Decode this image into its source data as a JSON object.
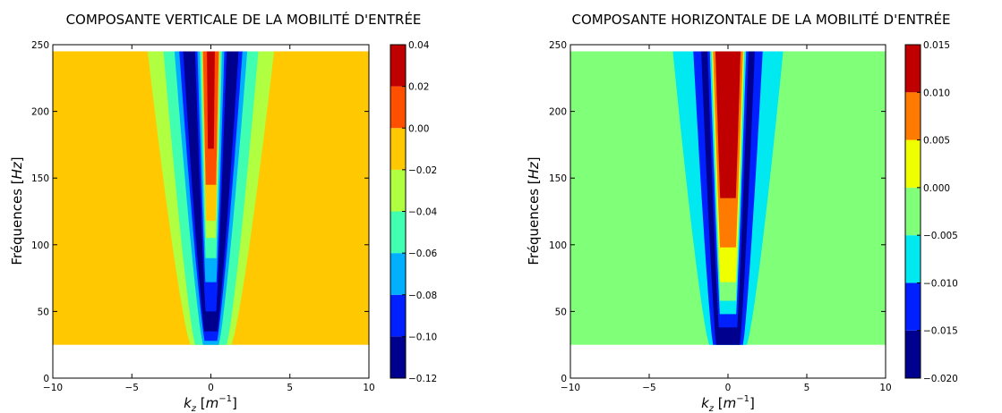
{
  "figure": {
    "background": "#ffffff",
    "colormap": [
      "#00008f",
      "#0020ff",
      "#00b0ff",
      "#40ffb0",
      "#b0ff40",
      "#ffc800",
      "#ff5000",
      "#c00000"
    ]
  },
  "chart_data": [
    {
      "type": "heatmap",
      "id": "vertical",
      "title": "COMPOSANTE VERTICALE DE LA MOBILITÉ D'ENTRÉE",
      "xlabel": "k_z [m^{-1}]",
      "ylabel": "Fréquences [Hz]",
      "xlim": [
        -10,
        10
      ],
      "ylim": [
        0,
        250
      ],
      "xticks": [
        -10,
        -5,
        0,
        5,
        10
      ],
      "yticks": [
        0,
        50,
        100,
        150,
        200,
        250
      ],
      "data_extent": {
        "x": [
          -10,
          10
        ],
        "y": [
          25,
          245
        ]
      },
      "background_level": "-0.02 to 0.00",
      "colorbar": {
        "levels": [
          -0.12,
          -0.1,
          -0.08,
          -0.06,
          -0.04,
          -0.02,
          0.0,
          0.02,
          0.04
        ],
        "tick_labels": [
          "−0.12",
          "−0.10",
          "−0.08",
          "−0.06",
          "−0.04",
          "−0.02",
          "0.00",
          "0.02",
          "0.04"
        ],
        "colors": [
          "#00008f",
          "#0020ff",
          "#00b0ff",
          "#40ffb0",
          "#b0ff40",
          "#ffc800",
          "#ff5000",
          "#c00000"
        ]
      },
      "contour_bands": [
        {
          "band": "-0.04 to -0.02",
          "color": "#b0ff40",
          "bottom_f": 25,
          "half_width_at_25": 1.3,
          "half_width_at_245": 4.0
        },
        {
          "band": "-0.06 to -0.04",
          "color": "#40ffb0",
          "bottom_f": 25,
          "half_width_at_25": 1.0,
          "half_width_at_245": 3.0
        },
        {
          "band": "-0.08 to -0.06",
          "color": "#00b0ff",
          "bottom_f": 25,
          "half_width_at_25": 0.5,
          "half_width_at_245": 2.3
        },
        {
          "band": "-0.10 to -0.08",
          "color": "#0020ff",
          "bottom_f": 28,
          "half_width_at_25": 0.35,
          "half_width_at_245": 2.0
        },
        {
          "band": "-0.12 to -0.10",
          "color": "#00008f",
          "bottom_f": 35,
          "half_width_at_25": 0.3,
          "half_width_at_245": 1.75
        },
        {
          "band": "-0.10 to -0.08",
          "color": "#0020ff",
          "bottom_f": 50,
          "half_width_at_25": 0.2,
          "half_width_at_245": 1.0
        },
        {
          "band": "-0.08 to -0.06",
          "color": "#00b0ff",
          "bottom_f": 72,
          "half_width_at_25": 0.15,
          "half_width_at_245": 0.85
        },
        {
          "band": "-0.06 to -0.04",
          "color": "#40ffb0",
          "bottom_f": 90,
          "half_width_at_25": 0.12,
          "half_width_at_245": 0.7
        },
        {
          "band": "-0.04 to -0.02",
          "color": "#b0ff40",
          "bottom_f": 105,
          "half_width_at_25": 0.1,
          "half_width_at_245": 0.58
        },
        {
          "band": "-0.02 to 0.00",
          "color": "#ffc800",
          "bottom_f": 118,
          "half_width_at_25": 0.08,
          "half_width_at_245": 0.55
        },
        {
          "band": "0.00 to 0.02",
          "color": "#ff5000",
          "bottom_f": 145,
          "half_width_at_25": 0.05,
          "half_width_at_245": 0.5
        },
        {
          "band": "0.02 to 0.04",
          "color": "#c00000",
          "bottom_f": 172,
          "half_width_at_25": 0.03,
          "half_width_at_245": 0.25
        }
      ]
    },
    {
      "type": "heatmap",
      "id": "horizontal",
      "title": "COMPOSANTE HORIZONTALE DE LA MOBILITÉ D'ENTRÉE",
      "xlabel": "k_z [m^{-1}]",
      "ylabel": "Fréquences [Hz]",
      "xlim": [
        -10,
        10
      ],
      "ylim": [
        0,
        250
      ],
      "xticks": [
        -10,
        -5,
        0,
        5,
        10
      ],
      "yticks": [
        0,
        50,
        100,
        150,
        200,
        250
      ],
      "data_extent": {
        "x": [
          -10,
          10
        ],
        "y": [
          25,
          245
        ]
      },
      "background_level": "-0.005 to 0.000",
      "colorbar": {
        "levels": [
          -0.02,
          -0.015,
          -0.01,
          -0.005,
          0.0,
          0.005,
          0.01,
          0.015
        ],
        "tick_labels": [
          "−0.020",
          "−0.015",
          "−0.010",
          "−0.005",
          "0.000",
          "0.005",
          "0.010",
          "0.015"
        ],
        "colors": [
          "#00008f",
          "#0020ff",
          "#00e8f0",
          "#80ff78",
          "#f0ff00",
          "#ff7a00",
          "#c00000"
        ]
      },
      "contour_bands": [
        {
          "band": "-0.010 to -0.005",
          "color": "#00e8f0",
          "bottom_f": 25,
          "half_width_at_25": 1.2,
          "half_width_at_245": 3.5
        },
        {
          "band": "-0.015 to -0.010",
          "color": "#0020ff",
          "bottom_f": 25,
          "half_width_at_25": 0.95,
          "half_width_at_245": 2.2
        },
        {
          "band": "-0.020 to -0.015",
          "color": "#00008f",
          "bottom_f": 25,
          "half_width_at_25": 0.75,
          "half_width_at_245": 1.7
        },
        {
          "band": "-0.015 to -0.010",
          "color": "#0020ff",
          "bottom_f": 38,
          "half_width_at_25": 0.5,
          "half_width_at_245": 1.3
        },
        {
          "band": "-0.010 to -0.005",
          "color": "#00e8f0",
          "bottom_f": 48,
          "half_width_at_25": 0.4,
          "half_width_at_245": 1.15
        },
        {
          "band": "-0.005 to 0.000",
          "color": "#80ff78",
          "bottom_f": 58,
          "half_width_at_25": 0.35,
          "half_width_at_245": 1.05
        },
        {
          "band": "0.000 to 0.005",
          "color": "#f0ff00",
          "bottom_f": 72,
          "half_width_at_25": 0.3,
          "half_width_at_245": 1.0
        },
        {
          "band": "0.005 to 0.010",
          "color": "#ff7a00",
          "bottom_f": 98,
          "half_width_at_25": 0.2,
          "half_width_at_245": 0.95
        },
        {
          "band": "0.010 to 0.015",
          "color": "#c00000",
          "bottom_f": 135,
          "half_width_at_25": 0.1,
          "half_width_at_245": 0.8
        }
      ]
    }
  ]
}
